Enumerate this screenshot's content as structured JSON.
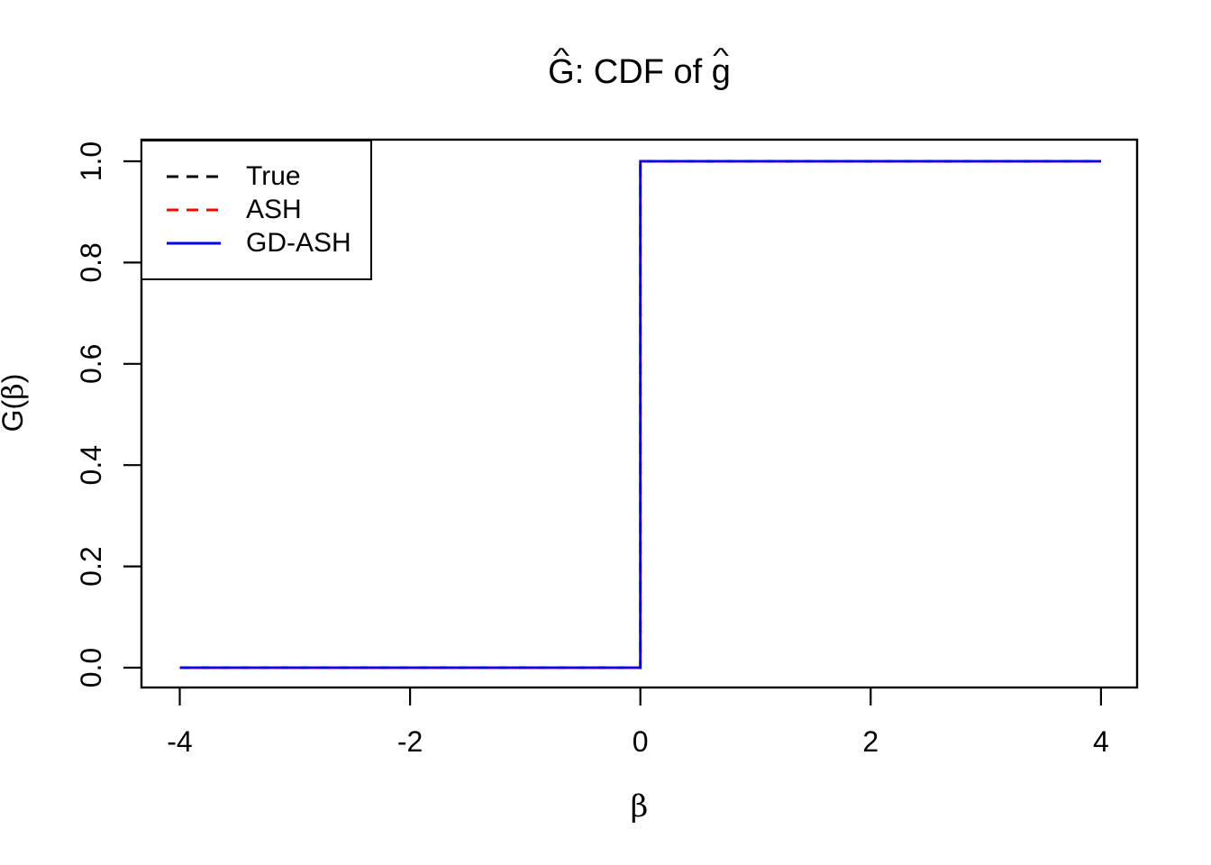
{
  "figure": {
    "background": "#ffffff",
    "foreground": "#000000"
  },
  "chart_data": {
    "type": "line",
    "subtype": "step-function-cdf",
    "title_plain": "Ĝ: CDF of ĝ",
    "title_parts": [
      {
        "text": "G",
        "hat": true,
        "greek": false
      },
      {
        "text": ": CDF of ",
        "hat": false,
        "greek": false
      },
      {
        "text": "g",
        "hat": true,
        "greek": false
      }
    ],
    "hat_glyph": "^",
    "xlabel": "β",
    "ylabel_plain": "Ĝ(β)",
    "ylabel_parts": [
      {
        "text": "G",
        "hat": true,
        "greek": false
      },
      {
        "text": "(",
        "hat": false,
        "greek": false
      },
      {
        "text": "β",
        "hat": false,
        "greek": true
      },
      {
        "text": ")",
        "hat": false,
        "greek": false
      }
    ],
    "xlim": [
      -4.32,
      4.32
    ],
    "ylim": [
      -0.04,
      1.04
    ],
    "x_ticks": [
      -4,
      -2,
      0,
      2,
      4
    ],
    "x_tick_labels": [
      "-4",
      "-2",
      "0",
      "2",
      "4"
    ],
    "y_ticks": [
      0.0,
      0.2,
      0.4,
      0.6,
      0.8,
      1.0
    ],
    "y_tick_labels": [
      "0.0",
      "0.2",
      "0.4",
      "0.6",
      "0.8",
      "1.0"
    ],
    "grid": false,
    "legend": {
      "position": "topleft",
      "entries": [
        {
          "label": "True",
          "color": "#000000",
          "style": "dashed"
        },
        {
          "label": "ASH",
          "color": "#ff0000",
          "style": "dashed"
        },
        {
          "label": "GD-ASH",
          "color": "#0000ff",
          "style": "solid"
        }
      ]
    },
    "series": [
      {
        "name": "True",
        "color": "#000000",
        "style": "dashed",
        "x": [
          -4,
          0,
          0,
          4
        ],
        "y": [
          0,
          0,
          1,
          1
        ]
      },
      {
        "name": "ASH",
        "color": "#ff0000",
        "style": "dashed",
        "x": [
          -4,
          0,
          0,
          4
        ],
        "y": [
          0,
          0,
          1,
          1
        ]
      },
      {
        "name": "GD-ASH",
        "color": "#0000ff",
        "style": "solid",
        "x": [
          -4,
          0,
          0,
          4
        ],
        "y": [
          0,
          0,
          1,
          1
        ]
      }
    ]
  }
}
